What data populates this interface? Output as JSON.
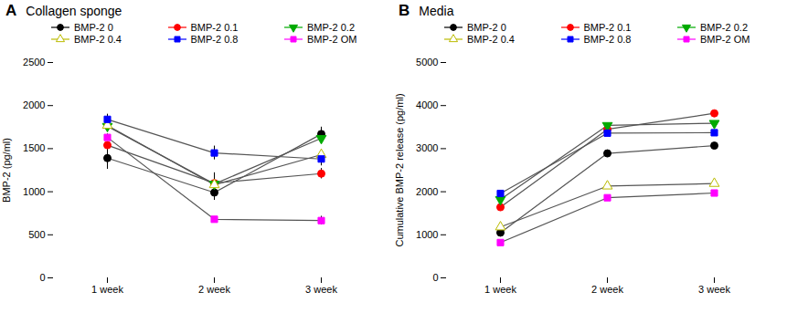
{
  "chart_data": [
    {
      "type": "line",
      "title": "Collagen sponge",
      "annotations": [
        "A"
      ],
      "ylabel": "BMP-2 (pg/ml)",
      "categories": [
        "1 week",
        "2 week",
        "3 week"
      ],
      "ylim": [
        0,
        2500
      ],
      "yticks": [
        0,
        500,
        1000,
        1500,
        2000,
        2500
      ],
      "color": "#555555",
      "legend": "upper left",
      "series": [
        {
          "name": "BMP-2 0",
          "color": "#000000",
          "marker": "circle",
          "values": [
            1390,
            990,
            1670
          ],
          "errors": [
            130,
            90,
            80
          ]
        },
        {
          "name": "BMP-2 0.1",
          "color": "#ff0000",
          "marker": "circle",
          "values": [
            1540,
            1100,
            1210
          ],
          "errors": [
            40,
            120,
            60
          ]
        },
        {
          "name": "BMP-2 0.2",
          "color": "#00aa00",
          "marker": "triangle-down",
          "values": [
            1760,
            1090,
            1620
          ],
          "errors": [
            30,
            30,
            60
          ]
        },
        {
          "name": "BMP-2 0.4",
          "color": "#bbbb00",
          "marker": "triangle-up-open",
          "values": [
            1770,
            1080,
            1430
          ],
          "errors": [
            30,
            30,
            60
          ]
        },
        {
          "name": "BMP-2 0.8",
          "color": "#0000ff",
          "marker": "square",
          "values": [
            1840,
            1450,
            1380
          ],
          "errors": [
            60,
            80,
            80
          ]
        },
        {
          "name": "BMP-2 OM",
          "color": "#ff00ff",
          "marker": "square",
          "values": [
            1630,
            680,
            665
          ],
          "errors": [
            40,
            30,
            50
          ]
        }
      ]
    },
    {
      "type": "line",
      "title": "Media",
      "annotations": [
        "B"
      ],
      "ylabel": "Cumulative BMP-2 release (pg/ml)",
      "categories": [
        "1 week",
        "2 week",
        "3 week"
      ],
      "ylim": [
        0,
        5000
      ],
      "yticks": [
        0,
        1000,
        2000,
        3000,
        4000,
        5000
      ],
      "color": "#555555",
      "legend": "upper left",
      "series": [
        {
          "name": "BMP-2 0",
          "color": "#000000",
          "marker": "circle",
          "values": [
            1050,
            2890,
            3070
          ]
        },
        {
          "name": "BMP-2 0.1",
          "color": "#ff0000",
          "marker": "circle",
          "values": [
            1640,
            3450,
            3820
          ]
        },
        {
          "name": "BMP-2 0.2",
          "color": "#00aa00",
          "marker": "triangle-down",
          "values": [
            1820,
            3540,
            3590
          ]
        },
        {
          "name": "BMP-2 0.4",
          "color": "#bbbb00",
          "marker": "triangle-up-open",
          "values": [
            1180,
            2130,
            2190
          ]
        },
        {
          "name": "BMP-2 0.8",
          "color": "#0000ff",
          "marker": "square",
          "values": [
            1960,
            3360,
            3370
          ]
        },
        {
          "name": "BMP-2 OM",
          "color": "#ff00ff",
          "marker": "square",
          "values": [
            820,
            1860,
            1970
          ]
        }
      ]
    }
  ]
}
